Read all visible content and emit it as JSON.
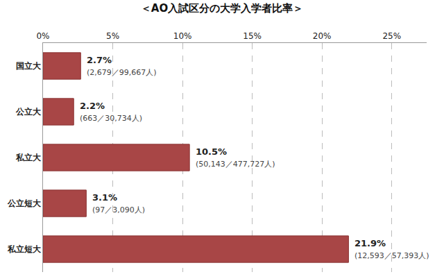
{
  "chart_data": {
    "type": "bar",
    "orientation": "horizontal",
    "title": "＜AO入試区分の大学入学者比率＞",
    "categories": [
      "国立大",
      "公立大",
      "私立大",
      "公立短大",
      "私立短大"
    ],
    "values": [
      2.7,
      2.2,
      10.5,
      3.1,
      21.9
    ],
    "value_labels": [
      "2.7%",
      "2.2%",
      "10.5%",
      "3.1%",
      "21.9%"
    ],
    "annotations": [
      "(2,679／99,667人)",
      "(663／30,734人)",
      "(50,143／477,727人)",
      "(97／3,090人)",
      "(12,593／57,393人)"
    ],
    "color": "#a84646",
    "xlim": [
      0,
      27.5
    ],
    "xticks": [
      {
        "value": 0,
        "label": "0%"
      },
      {
        "value": 5,
        "label": "5%"
      },
      {
        "value": 10,
        "label": "10%"
      },
      {
        "value": 15,
        "label": "15%"
      },
      {
        "value": 20,
        "label": "20%"
      },
      {
        "value": 25,
        "label": "25%"
      }
    ],
    "grid": true,
    "data_labels": true
  }
}
